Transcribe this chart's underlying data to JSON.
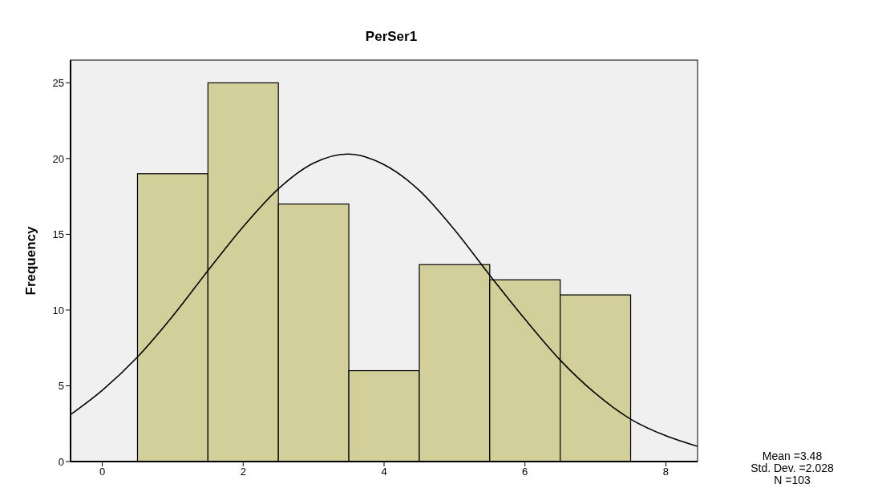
{
  "chart_data": {
    "type": "histogram",
    "title": "PerSer1",
    "ylabel": "Frequency",
    "bins": [
      0.5,
      1.5,
      2.5,
      3.5,
      4.5,
      5.5,
      6.5,
      7.5
    ],
    "values": [
      19,
      25,
      17,
      6,
      13,
      12,
      11
    ],
    "color": "#d3cf9a",
    "series": [
      {
        "type": "line",
        "color": "#000000",
        "x": [
          -0.45,
          0,
          0.5,
          1,
          1.5,
          2,
          2.5,
          3,
          3.48,
          4,
          4.5,
          5,
          5.5,
          6,
          6.5,
          7,
          7.5,
          8,
          8.45
        ],
        "values": [
          3.1,
          4.7,
          6.9,
          9.6,
          12.6,
          15.5,
          18.0,
          19.7,
          20.3,
          19.6,
          17.9,
          15.3,
          12.3,
          9.4,
          6.7,
          4.5,
          2.8,
          1.7,
          1.0
        ]
      }
    ],
    "xlim": [
      -0.45,
      8.45
    ],
    "xticks": [
      0,
      2,
      4,
      6,
      8
    ],
    "ylim": [
      0,
      26.5
    ],
    "yticks": [
      0,
      5,
      10,
      15,
      20,
      25
    ],
    "annotations": [
      "Mean =3.48",
      "Std. Dev. =2.028",
      "N =103"
    ]
  }
}
